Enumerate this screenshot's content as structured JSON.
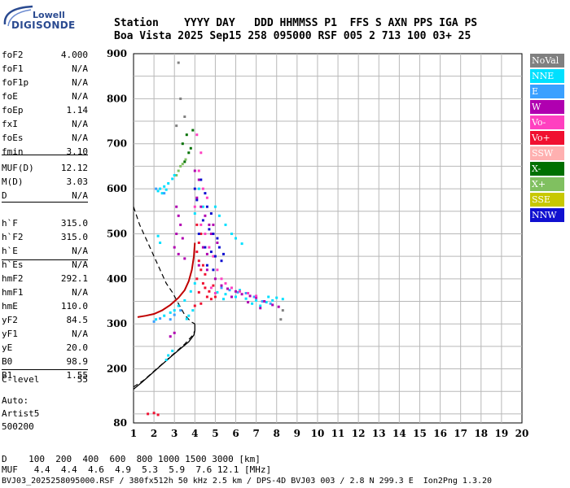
{
  "logo": {
    "line1": "Lowell",
    "line2": "DIGISONDE"
  },
  "header": {
    "line1": "Station    YYYY DAY   DDD HHMMSS P1  FFS S AXN PPS IGA PS",
    "line2": "Boa Vista 2025 Sep15 258 095000 RSF 005 2 713 100 03+ 25"
  },
  "params": {
    "group1": [
      {
        "k": "foF2",
        "v": "4.000"
      },
      {
        "k": "foF1",
        "v": "N/A"
      },
      {
        "k": "foF1p",
        "v": "N/A"
      },
      {
        "k": "foE",
        "v": "N/A"
      },
      {
        "k": "foEp",
        "v": "1.14"
      },
      {
        "k": "fxI",
        "v": "N/A"
      },
      {
        "k": "foEs",
        "v": "N/A"
      },
      {
        "k": "fmin",
        "v": "3.10"
      }
    ],
    "group2": [
      {
        "k": "MUF(D)",
        "v": "12.12"
      },
      {
        "k": "M(D)",
        "v": "3.03"
      },
      {
        "k": "D",
        "v": "N/A"
      }
    ],
    "group3": [
      {
        "k": "h`F",
        "v": "315.0"
      },
      {
        "k": "h`F2",
        "v": "315.0"
      },
      {
        "k": "h`E",
        "v": "N/A"
      },
      {
        "k": "h`Es",
        "v": "N/A"
      }
    ],
    "group4": [
      {
        "k": "hmF2",
        "v": "292.1"
      },
      {
        "k": "hmF1",
        "v": "N/A"
      },
      {
        "k": "hmE",
        "v": "110.0"
      },
      {
        "k": "yF2",
        "v": "84.5"
      },
      {
        "k": "yF1",
        "v": "N/A"
      },
      {
        "k": "yE",
        "v": "20.0"
      },
      {
        "k": "B0",
        "v": "98.9"
      },
      {
        "k": "B1",
        "v": "1.55"
      }
    ],
    "group5": [
      {
        "k": "C-level",
        "v": "55"
      }
    ]
  },
  "auto": {
    "line1": "Auto:",
    "line2": "Artist5",
    "line3": "500200"
  },
  "legend": [
    {
      "label": "NoVal",
      "color": "#808080"
    },
    {
      "label": "NNE",
      "color": "#00e0ff"
    },
    {
      "label": "E",
      "color": "#3aa0ff"
    },
    {
      "label": "W",
      "color": "#b000b0"
    },
    {
      "label": "Vo-",
      "color": "#ff40c0"
    },
    {
      "label": "Vo+",
      "color": "#f01030"
    },
    {
      "label": "SSW",
      "color": "#ffb0b0"
    },
    {
      "label": "X-",
      "color": "#007000"
    },
    {
      "label": "X+",
      "color": "#80c060"
    },
    {
      "label": "SSE",
      "color": "#c8c800"
    },
    {
      "label": "NNW",
      "color": "#1010d0"
    }
  ],
  "chart_data": {
    "type": "scatter",
    "xlim": [
      1,
      20
    ],
    "ylim": [
      80,
      900
    ],
    "x_ticks": [
      "1",
      "2",
      "3",
      "4",
      "5",
      "6",
      "7",
      "8",
      "9",
      "10",
      "11",
      "12",
      "13",
      "14",
      "15",
      "16",
      "17",
      "18",
      "19",
      "20"
    ],
    "y_ticks": [
      "900",
      "800",
      "700",
      "600",
      "500",
      "400",
      "300",
      "200",
      "80"
    ],
    "grid": true,
    "legend_position": "right",
    "series": [
      {
        "name": "X-",
        "points": [
          [
            3.4,
            700
          ],
          [
            3.6,
            720
          ],
          [
            3.8,
            690
          ],
          [
            3.5,
            660
          ],
          [
            3.9,
            730
          ],
          [
            3.7,
            680
          ]
        ]
      },
      {
        "name": "X+",
        "points": [
          [
            3.2,
            640
          ],
          [
            3.4,
            655
          ],
          [
            3.55,
            665
          ],
          [
            3.3,
            650
          ],
          [
            3.1,
            630
          ]
        ]
      },
      {
        "name": "NNE",
        "points": [
          [
            2.3,
            600
          ],
          [
            2.5,
            605
          ],
          [
            2.7,
            612
          ],
          [
            2.9,
            622
          ],
          [
            3.0,
            630
          ],
          [
            2.4,
            590
          ],
          [
            2.6,
            598
          ],
          [
            2.2,
            595
          ],
          [
            2.1,
            310
          ],
          [
            2.5,
            318
          ],
          [
            2.8,
            325
          ],
          [
            3.0,
            330
          ],
          [
            3.2,
            340
          ],
          [
            3.5,
            352
          ],
          [
            3.8,
            372
          ],
          [
            4.0,
            390
          ],
          [
            5.0,
            560
          ],
          [
            5.2,
            540
          ],
          [
            5.5,
            520
          ],
          [
            5.8,
            500
          ],
          [
            6.0,
            490
          ],
          [
            6.3,
            478
          ],
          [
            5.1,
            370
          ],
          [
            5.5,
            366
          ],
          [
            6.0,
            360
          ],
          [
            6.5,
            356
          ],
          [
            7.0,
            352
          ],
          [
            7.5,
            348
          ],
          [
            7.8,
            352
          ],
          [
            8.0,
            358
          ],
          [
            8.3,
            355
          ],
          [
            6.8,
            345
          ],
          [
            7.2,
            340
          ],
          [
            7.6,
            360
          ],
          [
            5.4,
            355
          ],
          [
            6.2,
            375
          ],
          [
            4.2,
            600
          ],
          [
            4.4,
            560
          ],
          [
            4.0,
            545
          ],
          [
            3.9,
            330
          ],
          [
            3.7,
            318
          ],
          [
            3.6,
            311
          ],
          [
            2.2,
            495
          ],
          [
            2.3,
            480
          ],
          [
            2.6,
            220
          ],
          [
            2.9,
            240
          ],
          [
            2.7,
            230
          ]
        ]
      },
      {
        "name": "E",
        "points": [
          [
            2.1,
            600
          ],
          [
            2.5,
            590
          ],
          [
            2.8,
            310
          ],
          [
            3.0,
            320
          ],
          [
            3.3,
            330
          ],
          [
            5.3,
            380
          ],
          [
            5.7,
            375
          ],
          [
            6.1,
            370
          ],
          [
            6.5,
            368
          ],
          [
            6.9,
            360
          ],
          [
            7.3,
            350
          ],
          [
            7.7,
            345
          ],
          [
            2.0,
            305
          ],
          [
            2.3,
            312
          ]
        ]
      },
      {
        "name": "W",
        "points": [
          [
            3.1,
            560
          ],
          [
            3.2,
            540
          ],
          [
            3.3,
            520
          ],
          [
            3.1,
            500
          ],
          [
            3.4,
            490
          ],
          [
            3.0,
            470
          ],
          [
            3.2,
            455
          ],
          [
            3.5,
            445
          ],
          [
            4.0,
            640
          ],
          [
            4.2,
            620
          ],
          [
            4.1,
            580
          ],
          [
            4.3,
            560
          ],
          [
            4.5,
            540
          ],
          [
            4.7,
            520
          ],
          [
            4.8,
            500
          ],
          [
            4.4,
            470
          ],
          [
            4.6,
            455
          ],
          [
            4.2,
            430
          ],
          [
            4.6,
            420
          ],
          [
            5.0,
            400
          ],
          [
            5.3,
            385
          ],
          [
            5.6,
            378
          ],
          [
            6.0,
            372
          ],
          [
            6.3,
            366
          ],
          [
            6.7,
            362
          ],
          [
            7.0,
            358
          ],
          [
            7.4,
            350
          ],
          [
            7.8,
            342
          ],
          [
            8.1,
            338
          ],
          [
            5.8,
            360
          ],
          [
            6.6,
            348
          ],
          [
            7.2,
            335
          ],
          [
            4.9,
            520
          ],
          [
            5.1,
            480
          ],
          [
            3.0,
            280
          ],
          [
            2.8,
            272
          ]
        ]
      },
      {
        "name": "Vo-",
        "points": [
          [
            4.1,
            720
          ],
          [
            4.3,
            680
          ],
          [
            4.2,
            640
          ],
          [
            4.4,
            600
          ],
          [
            4.6,
            580
          ],
          [
            4.0,
            560
          ],
          [
            4.3,
            520
          ],
          [
            4.5,
            500
          ],
          [
            4.7,
            470
          ],
          [
            4.9,
            450
          ],
          [
            5.1,
            420
          ],
          [
            5.3,
            400
          ],
          [
            5.5,
            390
          ],
          [
            5.8,
            380
          ],
          [
            6.2,
            372
          ],
          [
            6.6,
            368
          ],
          [
            7.0,
            362
          ],
          [
            4.8,
            380
          ],
          [
            5.0,
            368
          ]
        ]
      },
      {
        "name": "Vo+",
        "points": [
          [
            4.1,
            460
          ],
          [
            4.2,
            440
          ],
          [
            4.3,
            420
          ],
          [
            4.1,
            400
          ],
          [
            4.4,
            390
          ],
          [
            4.5,
            380
          ],
          [
            4.2,
            370
          ],
          [
            4.6,
            360
          ],
          [
            4.8,
            355
          ],
          [
            4.3,
            345
          ],
          [
            4.0,
            340
          ],
          [
            4.7,
            372
          ],
          [
            4.9,
            385
          ],
          [
            5.0,
            360
          ],
          [
            4.5,
            410
          ],
          [
            4.4,
            430
          ],
          [
            4.2,
            480
          ],
          [
            4.3,
            500
          ],
          [
            4.1,
            520
          ],
          [
            1.7,
            100
          ],
          [
            2.0,
            102
          ],
          [
            2.2,
            98
          ]
        ]
      },
      {
        "name": "NNW",
        "points": [
          [
            4.3,
            620
          ],
          [
            4.5,
            590
          ],
          [
            4.6,
            560
          ],
          [
            4.8,
            545
          ],
          [
            4.4,
            530
          ],
          [
            4.7,
            510
          ],
          [
            4.9,
            500
          ],
          [
            5.1,
            490
          ],
          [
            4.5,
            470
          ],
          [
            4.8,
            460
          ],
          [
            5.0,
            450
          ],
          [
            5.3,
            440
          ],
          [
            4.6,
            430
          ],
          [
            4.9,
            420
          ],
          [
            4.2,
            500
          ],
          [
            5.2,
            470
          ],
          [
            5.4,
            455
          ],
          [
            4.0,
            600
          ],
          [
            4.1,
            575
          ]
        ]
      },
      {
        "name": "NoVal",
        "points": [
          [
            3.2,
            880
          ],
          [
            3.3,
            800
          ],
          [
            3.5,
            760
          ],
          [
            3.1,
            740
          ],
          [
            8.3,
            330
          ],
          [
            8.2,
            310
          ]
        ]
      }
    ],
    "virtual_height_trace": [
      [
        1.2,
        315
      ],
      [
        1.6,
        318
      ],
      [
        2.0,
        322
      ],
      [
        2.4,
        330
      ],
      [
        2.8,
        342
      ],
      [
        3.2,
        358
      ],
      [
        3.5,
        375
      ],
      [
        3.7,
        395
      ],
      [
        3.85,
        420
      ],
      [
        3.95,
        450
      ],
      [
        4.0,
        480
      ]
    ],
    "profile_dashed_upper": [
      [
        1.0,
        560
      ],
      [
        1.3,
        520
      ],
      [
        1.7,
        480
      ],
      [
        2.0,
        450
      ],
      [
        2.3,
        420
      ],
      [
        2.6,
        390
      ],
      [
        2.9,
        370
      ],
      [
        3.2,
        345
      ],
      [
        3.5,
        320
      ],
      [
        3.8,
        305
      ],
      [
        4.0,
        300
      ]
    ],
    "profile_dashed_lower": [
      [
        1.0,
        160
      ],
      [
        1.5,
        175
      ],
      [
        2.0,
        195
      ],
      [
        2.5,
        215
      ],
      [
        3.0,
        235
      ],
      [
        3.5,
        255
      ],
      [
        3.9,
        275
      ],
      [
        4.0,
        285
      ]
    ],
    "profile_solid": [
      [
        1.0,
        155
      ],
      [
        1.4,
        170
      ],
      [
        1.9,
        190
      ],
      [
        2.4,
        210
      ],
      [
        2.9,
        230
      ],
      [
        3.3,
        245
      ],
      [
        3.7,
        260
      ],
      [
        3.95,
        275
      ],
      [
        4.0,
        285
      ],
      [
        4.0,
        300
      ]
    ]
  },
  "footer": {
    "line1": "D    100  200  400  600  800 1000 1500 3000 [km]",
    "line2": "MUF   4.4  4.4  4.6  4.9  5.3  5.9  7.6 12.1 [MHz]",
    "line3": "BVJ03_2025258095000.RSF / 380fx512h 50 kHz 2.5 km / DPS-4D BVJ03 003 / 2.8 N 299.3 E  Ion2Png 1.3.20"
  }
}
